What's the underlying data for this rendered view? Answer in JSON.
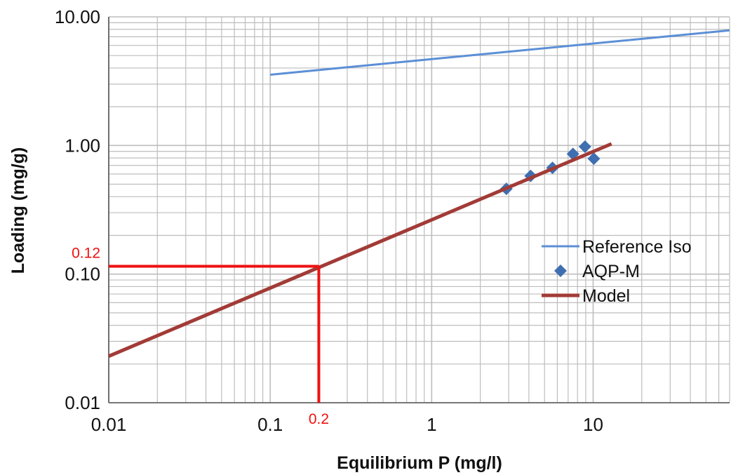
{
  "chart_data": {
    "type": "scatter",
    "xscale": "log",
    "yscale": "log",
    "xlim": [
      0.01,
      70
    ],
    "ylim": [
      0.01,
      10
    ],
    "grid": true,
    "xlabel": "Equilibrium P (mg/l)",
    "ylabel": "Loading (mg/g)",
    "x_ticks": [
      {
        "value": 0.01,
        "label": "0.01"
      },
      {
        "value": 0.1,
        "label": "0.1"
      },
      {
        "value": 1,
        "label": "1"
      },
      {
        "value": 10,
        "label": "10"
      }
    ],
    "y_ticks": [
      {
        "value": 0.01,
        "label": "0.01"
      },
      {
        "value": 0.1,
        "label": "0.10"
      },
      {
        "value": 1,
        "label": "1.00"
      },
      {
        "value": 10,
        "label": "10.00"
      }
    ],
    "legend": {
      "position": "right"
    },
    "series": [
      {
        "name": "Reference Iso",
        "kind": "line",
        "color": "#5b8fd6",
        "x": [
          0.1,
          70
        ],
        "y": [
          3.55,
          7.85
        ]
      },
      {
        "name": "AQP-M",
        "kind": "scatter",
        "marker": "diamond",
        "color": "#3f6fb0",
        "x": [
          2.9,
          4.1,
          5.6,
          7.5,
          8.9,
          10.1
        ],
        "y": [
          0.46,
          0.58,
          0.67,
          0.86,
          0.98,
          0.79
        ]
      },
      {
        "name": "Model",
        "kind": "line",
        "color": "#a23b37",
        "x": [
          0.01,
          13
        ],
        "y": [
          0.023,
          1.03
        ]
      }
    ],
    "annotations": [
      {
        "kind": "hline",
        "color": "#ee1111",
        "y": 0.115,
        "x_from": 0.01,
        "x_to": 0.2,
        "label": "0.12"
      },
      {
        "kind": "vline",
        "color": "#ee1111",
        "x": 0.2,
        "y_from": 0.01,
        "y_to": 0.115,
        "label": "0.2"
      }
    ]
  }
}
